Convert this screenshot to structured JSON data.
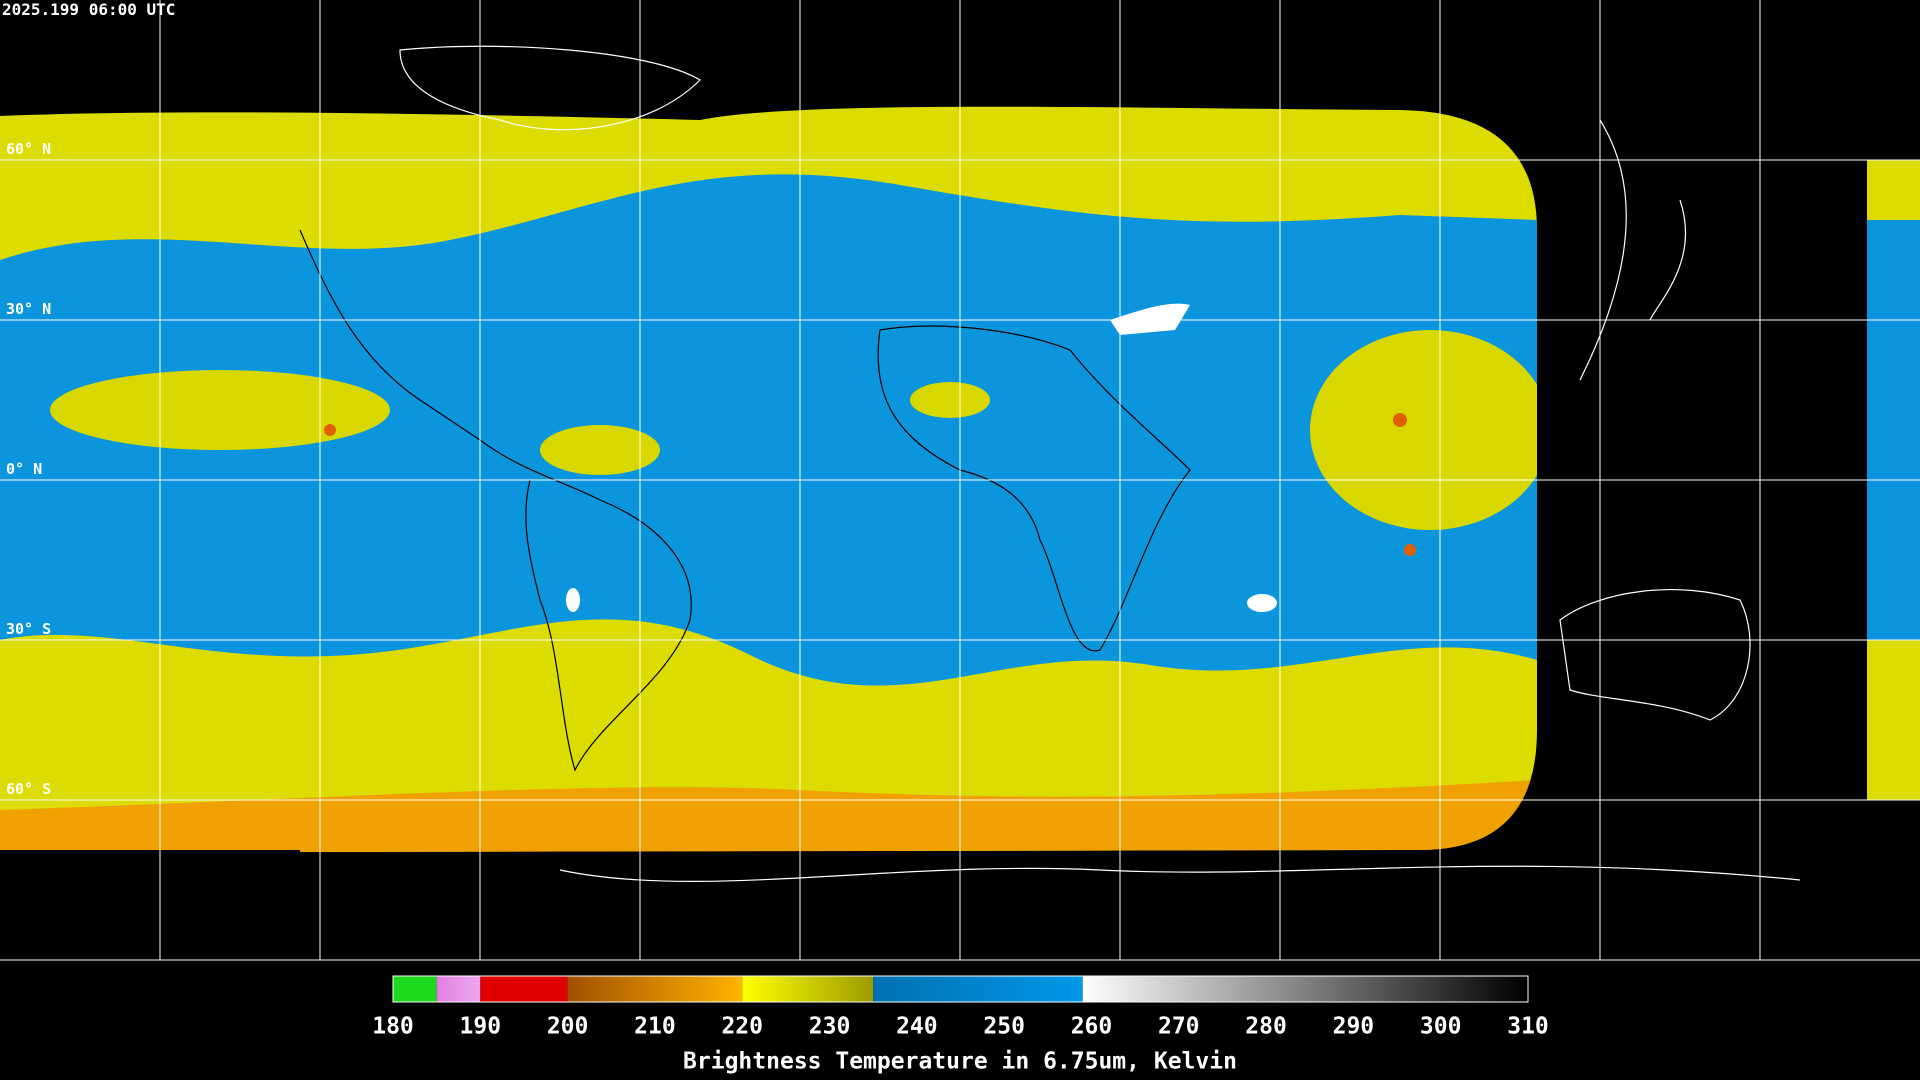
{
  "header": {
    "title": "2025.199 06:00 UTC"
  },
  "map": {
    "latitude_labels": [
      "60° N",
      "30° N",
      "0° N",
      "30° S",
      "60° S"
    ]
  },
  "colorbar": {
    "min": 180,
    "max": 310,
    "ticks": [
      180,
      190,
      200,
      210,
      220,
      230,
      240,
      250,
      260,
      270,
      280,
      290,
      300,
      310
    ],
    "label": "Brightness Temperature in 6.75um, Kelvin",
    "segments": [
      {
        "from": 180,
        "to": 185,
        "colors": [
          "#1ed91e",
          "#1ed91e"
        ]
      },
      {
        "from": 185,
        "to": 190,
        "colors": [
          "#e07ee0",
          "#f0a8f0"
        ]
      },
      {
        "from": 190,
        "to": 200,
        "colors": [
          "#e00000",
          "#e00000"
        ]
      },
      {
        "from": 200,
        "to": 220,
        "colors": [
          "#a05000",
          "#ffb400"
        ]
      },
      {
        "from": 220,
        "to": 235,
        "colors": [
          "#ffff00",
          "#9c9c00"
        ]
      },
      {
        "from": 235,
        "to": 259,
        "colors": [
          "#0070b0",
          "#0098e8"
        ]
      },
      {
        "from": 259,
        "to": 310,
        "colors": [
          "#ffffff",
          "#000000"
        ]
      }
    ]
  }
}
